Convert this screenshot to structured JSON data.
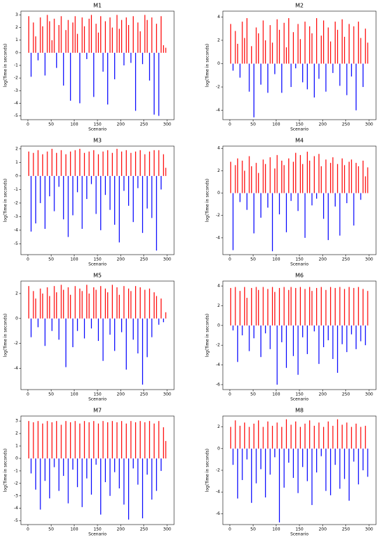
{
  "chart_data": [
    {
      "type": "bar",
      "title": "M1",
      "xlabel": "Scenario",
      "ylabel": "log(Time in seconds)",
      "color_positive": "#ff0000",
      "color_negative": "#0000ff",
      "xlim": [
        -15,
        315
      ],
      "xticks": [
        0,
        50,
        100,
        150,
        200,
        250,
        300
      ],
      "ylim": [
        -5.3,
        3.3
      ],
      "yticks": [
        -5,
        -4,
        -3,
        -2,
        -1,
        0,
        1,
        2,
        3
      ],
      "x": [
        2,
        7,
        12,
        17,
        22,
        27,
        32,
        37,
        42,
        47,
        52,
        57,
        62,
        67,
        72,
        77,
        82,
        87,
        92,
        97,
        102,
        107,
        112,
        117,
        122,
        127,
        132,
        137,
        142,
        147,
        152,
        157,
        162,
        167,
        172,
        177,
        182,
        187,
        192,
        197,
        202,
        207,
        212,
        217,
        222,
        227,
        232,
        237,
        242,
        247,
        252,
        257,
        262,
        267,
        272,
        277,
        282,
        287,
        292,
        297
      ],
      "values": [
        2.9,
        -1.9,
        2.4,
        1.3,
        -0.6,
        2.8,
        2.1,
        -1.8,
        3.0,
        2.5,
        1.0,
        2.7,
        -1.2,
        2.2,
        2.9,
        -2.6,
        1.8,
        2.6,
        -3.8,
        2.4,
        2.9,
        1.5,
        -4.0,
        2.8,
        2.1,
        -0.5,
        2.7,
        3.0,
        -3.5,
        2.3,
        1.6,
        2.9,
        -1.5,
        2.5,
        -4.1,
        2.8,
        2.0,
        -2.1,
        3.0,
        1.9,
        2.6,
        -1.0,
        2.8,
        2.2,
        -0.8,
        2.9,
        -4.6,
        2.4,
        1.7,
        -0.9,
        3.0,
        2.6,
        -2.2,
        2.8,
        -4.9,
        2.3,
        -5.0,
        2.9,
        0.6,
        0.4
      ]
    },
    {
      "type": "bar",
      "title": "M2",
      "xlabel": "Scenario",
      "ylabel": "log(Time in seconds)",
      "color_positive": "#ff0000",
      "color_negative": "#0000ff",
      "xlim": [
        -15,
        315
      ],
      "xticks": [
        0,
        50,
        100,
        150,
        200,
        250,
        300
      ],
      "ylim": [
        -4.8,
        4.5
      ],
      "yticks": [
        -4,
        -2,
        0,
        2,
        4
      ],
      "x": [
        2,
        7,
        12,
        17,
        22,
        27,
        32,
        37,
        42,
        47,
        52,
        57,
        62,
        67,
        72,
        77,
        82,
        87,
        92,
        97,
        102,
        107,
        112,
        117,
        122,
        127,
        132,
        137,
        142,
        147,
        152,
        157,
        162,
        167,
        172,
        177,
        182,
        187,
        192,
        197,
        202,
        207,
        212,
        217,
        222,
        227,
        232,
        237,
        242,
        247,
        252,
        257,
        262,
        267,
        272,
        277,
        282,
        287,
        292,
        297
      ],
      "values": [
        3.4,
        -0.6,
        2.8,
        1.7,
        -1.2,
        3.6,
        2.2,
        3.9,
        -2.4,
        1.5,
        -4.6,
        3.1,
        2.6,
        -1.8,
        3.7,
        2.0,
        -2.5,
        3.3,
        1.8,
        -0.9,
        3.8,
        2.9,
        -2.5,
        3.5,
        1.4,
        3.9,
        -2.0,
        2.7,
        -0.4,
        3.4,
        2.1,
        -1.6,
        3.6,
        -2.2,
        3.2,
        2.6,
        -2.9,
        3.9,
        -1.3,
        2.4,
        3.7,
        -2.4,
        3.1,
        1.9,
        -0.8,
        3.6,
        2.9,
        -1.9,
        3.8,
        2.3,
        -2.7,
        3.4,
        -1.1,
        3.2,
        -4.0,
        3.6,
        2.2,
        -2.0,
        3.0,
        1.8
      ]
    },
    {
      "type": "bar",
      "title": "M3",
      "xlabel": "Scenario",
      "ylabel": "log(Time in seconds)",
      "color_positive": "#ff0000",
      "color_negative": "#0000ff",
      "xlim": [
        -15,
        315
      ],
      "xticks": [
        0,
        50,
        100,
        150,
        200,
        250,
        300
      ],
      "ylim": [
        -5.8,
        2.2
      ],
      "yticks": [
        -5,
        -4,
        -3,
        -2,
        -1,
        0,
        1,
        2
      ],
      "x": [
        2,
        7,
        12,
        17,
        22,
        27,
        32,
        37,
        42,
        47,
        52,
        57,
        62,
        67,
        72,
        77,
        82,
        87,
        92,
        97,
        102,
        107,
        112,
        117,
        122,
        127,
        132,
        137,
        142,
        147,
        152,
        157,
        162,
        167,
        172,
        177,
        182,
        187,
        192,
        197,
        202,
        207,
        212,
        217,
        222,
        227,
        232,
        237,
        242,
        247,
        252,
        257,
        262,
        267,
        272,
        277,
        282,
        287,
        292,
        297
      ],
      "values": [
        1.8,
        -4.1,
        1.7,
        -3.5,
        1.9,
        -2.0,
        1.6,
        -3.9,
        1.8,
        -1.5,
        2.0,
        -2.6,
        1.7,
        -0.8,
        1.9,
        -3.2,
        1.6,
        -4.5,
        1.8,
        -2.9,
        1.9,
        -1.2,
        2.0,
        -3.9,
        1.7,
        -1.7,
        1.8,
        -0.6,
        1.9,
        -2.8,
        1.6,
        -4.0,
        1.8,
        -1.4,
        1.9,
        -2.5,
        1.7,
        -3.6,
        2.0,
        -4.9,
        1.8,
        -1.1,
        1.9,
        -2.2,
        1.7,
        -3.4,
        1.8,
        -0.9,
        1.9,
        -4.2,
        1.6,
        -2.4,
        1.8,
        -3.1,
        1.9,
        -5.5,
        1.9,
        -1.0,
        1.6,
        0.6
      ]
    },
    {
      "type": "bar",
      "title": "M4",
      "xlabel": "Scenario",
      "ylabel": "log(Time in seconds)",
      "color_positive": "#ff0000",
      "color_negative": "#0000ff",
      "xlim": [
        -15,
        315
      ],
      "xticks": [
        0,
        50,
        100,
        150,
        200,
        250,
        300
      ],
      "ylim": [
        -5.5,
        4.2
      ],
      "yticks": [
        -4,
        -2,
        0,
        2,
        4
      ],
      "x": [
        2,
        7,
        12,
        17,
        22,
        27,
        32,
        37,
        42,
        47,
        52,
        57,
        62,
        67,
        72,
        77,
        82,
        87,
        92,
        97,
        102,
        107,
        112,
        117,
        122,
        127,
        132,
        137,
        142,
        147,
        152,
        157,
        162,
        167,
        172,
        177,
        182,
        187,
        192,
        197,
        202,
        207,
        212,
        217,
        222,
        227,
        232,
        237,
        242,
        247,
        252,
        257,
        262,
        267,
        272,
        277,
        282,
        287,
        292,
        297
      ],
      "values": [
        2.8,
        -5.1,
        2.5,
        3.1,
        -0.8,
        2.9,
        2.0,
        -1.5,
        3.3,
        2.4,
        -3.6,
        2.7,
        1.8,
        -2.2,
        3.0,
        2.6,
        -1.3,
        3.2,
        -5.2,
        2.2,
        3.4,
        -1.9,
        2.9,
        2.5,
        -3.5,
        3.1,
        -0.7,
        2.8,
        3.6,
        -1.6,
        3.4,
        2.6,
        -4.0,
        3.7,
        2.9,
        -1.1,
        3.3,
        -0.5,
        3.5,
        2.4,
        -2.3,
        3.0,
        -4.2,
        2.7,
        3.2,
        -1.2,
        2.6,
        -3.8,
        3.1,
        2.5,
        -0.9,
        2.8,
        3.0,
        -2.9,
        2.7,
        2.4,
        -0.6,
        2.9,
        1.5,
        2.3
      ]
    },
    {
      "type": "bar",
      "title": "M5",
      "xlabel": "Scenario",
      "ylabel": "log(Time in seconds)",
      "color_positive": "#ff0000",
      "color_negative": "#0000ff",
      "xlim": [
        -15,
        315
      ],
      "xticks": [
        0,
        50,
        100,
        150,
        200,
        250,
        300
      ],
      "ylim": [
        -5.7,
        3.0
      ],
      "yticks": [
        -4,
        -2,
        0,
        2
      ],
      "x": [
        2,
        7,
        12,
        17,
        22,
        27,
        32,
        37,
        42,
        47,
        52,
        57,
        62,
        67,
        72,
        77,
        82,
        87,
        92,
        97,
        102,
        107,
        112,
        117,
        122,
        127,
        132,
        137,
        142,
        147,
        152,
        157,
        162,
        167,
        172,
        177,
        182,
        187,
        192,
        197,
        202,
        207,
        212,
        217,
        222,
        227,
        232,
        237,
        242,
        247,
        252,
        257,
        262,
        267,
        272,
        277,
        282,
        287,
        292,
        297
      ],
      "values": [
        2.6,
        -1.5,
        2.2,
        1.6,
        -0.7,
        2.4,
        2.0,
        -2.2,
        2.5,
        1.8,
        -1.0,
        2.6,
        2.1,
        -1.7,
        2.7,
        2.3,
        -3.9,
        2.5,
        1.9,
        -2.3,
        2.6,
        -1.0,
        2.4,
        2.2,
        -1.6,
        2.7,
        2.0,
        -0.8,
        2.5,
        2.3,
        -1.8,
        2.6,
        -3.4,
        2.4,
        2.1,
        -1.3,
        2.7,
        -2.6,
        2.5,
        1.9,
        -1.1,
        2.6,
        -4.1,
        2.4,
        2.2,
        -1.7,
        2.6,
        -2.8,
        2.5,
        -5.3,
        2.3,
        -3.1,
        2.4,
        -1.5,
        2.1,
        1.8,
        -0.5,
        1.6,
        -0.3,
        0.5
      ]
    },
    {
      "type": "bar",
      "title": "M6",
      "xlabel": "Scenario",
      "ylabel": "log(Time in seconds)",
      "color_positive": "#ff0000",
      "color_negative": "#0000ff",
      "xlim": [
        -15,
        315
      ],
      "xticks": [
        0,
        50,
        100,
        150,
        200,
        250,
        300
      ],
      "ylim": [
        -6.5,
        4.5
      ],
      "yticks": [
        -6,
        -4,
        -2,
        0,
        2,
        4
      ],
      "x": [
        2,
        7,
        12,
        17,
        22,
        27,
        32,
        37,
        42,
        47,
        52,
        57,
        62,
        67,
        72,
        77,
        82,
        87,
        92,
        97,
        102,
        107,
        112,
        117,
        122,
        127,
        132,
        137,
        142,
        147,
        152,
        157,
        162,
        167,
        172,
        177,
        182,
        187,
        192,
        197,
        202,
        207,
        212,
        217,
        222,
        227,
        232,
        237,
        242,
        247,
        252,
        257,
        262,
        267,
        272,
        277,
        282,
        287,
        292,
        297
      ],
      "values": [
        3.8,
        -0.5,
        3.9,
        -3.7,
        3.5,
        -1.0,
        3.9,
        2.8,
        -2.6,
        3.8,
        -1.3,
        3.9,
        3.6,
        -3.2,
        3.9,
        -0.8,
        3.7,
        -2.4,
        3.9,
        3.4,
        -6.0,
        3.8,
        -1.7,
        3.9,
        -4.3,
        3.6,
        3.9,
        -3.1,
        3.8,
        -5.0,
        3.9,
        -1.2,
        3.7,
        -2.9,
        3.9,
        3.5,
        -0.6,
        3.8,
        -3.9,
        3.9,
        -2.2,
        3.6,
        -1.5,
        3.9,
        -3.4,
        3.8,
        -4.8,
        3.9,
        -1.9,
        3.7,
        -2.7,
        3.9,
        -0.9,
        3.8,
        -2.4,
        3.9,
        -1.6,
        3.7,
        -2.0,
        3.5
      ]
    },
    {
      "type": "bar",
      "title": "M7",
      "xlabel": "Scenario",
      "ylabel": "log(Time in seconds)",
      "color_positive": "#ff0000",
      "color_negative": "#0000ff",
      "xlim": [
        -15,
        315
      ],
      "xticks": [
        0,
        50,
        100,
        150,
        200,
        250,
        300
      ],
      "ylim": [
        -5.3,
        3.4
      ],
      "yticks": [
        -5,
        -4,
        -3,
        -2,
        -1,
        0,
        1,
        2,
        3
      ],
      "x": [
        2,
        7,
        12,
        17,
        22,
        27,
        32,
        37,
        42,
        47,
        52,
        57,
        62,
        67,
        72,
        77,
        82,
        87,
        92,
        97,
        102,
        107,
        112,
        117,
        122,
        127,
        132,
        137,
        142,
        147,
        152,
        157,
        162,
        167,
        172,
        177,
        182,
        187,
        192,
        197,
        202,
        207,
        212,
        217,
        222,
        227,
        232,
        237,
        242,
        247,
        252,
        257,
        262,
        267,
        272,
        277,
        282,
        287,
        292,
        297
      ],
      "values": [
        3.0,
        -1.2,
        2.9,
        -2.5,
        3.0,
        -4.1,
        2.8,
        -1.8,
        3.0,
        -3.2,
        2.9,
        -0.7,
        3.0,
        -2.6,
        2.7,
        -1.4,
        3.0,
        -3.6,
        2.9,
        -0.9,
        3.0,
        -2.3,
        2.8,
        -3.9,
        3.0,
        -1.6,
        2.9,
        -2.9,
        3.0,
        -0.5,
        2.8,
        -4.5,
        3.0,
        -1.9,
        2.9,
        -3.0,
        3.0,
        -1.1,
        2.9,
        -2.4,
        3.0,
        -3.7,
        2.8,
        -4.9,
        3.0,
        -0.8,
        2.9,
        -2.1,
        3.0,
        -4.8,
        2.9,
        -1.3,
        3.0,
        -3.3,
        2.8,
        -2.6,
        3.0,
        -1.0,
        2.5,
        1.4
      ]
    },
    {
      "type": "bar",
      "title": "M8",
      "xlabel": "Scenario",
      "ylabel": "log(Time in seconds)",
      "color_positive": "#ff0000",
      "color_negative": "#0000ff",
      "xlim": [
        -15,
        315
      ],
      "xticks": [
        0,
        50,
        100,
        150,
        200,
        250,
        300
      ],
      "ylim": [
        -7,
        3.0
      ],
      "yticks": [
        -6,
        -4,
        -2,
        0,
        2
      ],
      "x": [
        2,
        7,
        12,
        17,
        22,
        27,
        32,
        37,
        42,
        47,
        52,
        57,
        62,
        67,
        72,
        77,
        82,
        87,
        92,
        97,
        102,
        107,
        112,
        117,
        122,
        127,
        132,
        137,
        142,
        147,
        152,
        157,
        162,
        167,
        172,
        177,
        182,
        187,
        192,
        197,
        202,
        207,
        212,
        217,
        222,
        227,
        232,
        237,
        242,
        247,
        252,
        257,
        262,
        267,
        272,
        277,
        282,
        287,
        292,
        297
      ],
      "values": [
        2.0,
        -1.5,
        2.6,
        -4.6,
        2.1,
        -2.9,
        2.4,
        -1.0,
        2.0,
        -5.0,
        2.3,
        -3.2,
        2.6,
        -1.9,
        2.0,
        -4.5,
        2.5,
        -2.4,
        2.1,
        -0.8,
        2.4,
        -6.8,
        2.0,
        -3.6,
        2.7,
        -1.3,
        2.2,
        -2.7,
        2.5,
        -4.1,
        2.0,
        -1.7,
        2.3,
        -3.0,
        2.6,
        -5.2,
        2.1,
        -2.2,
        2.4,
        -0.7,
        2.0,
        -3.9,
        2.5,
        -4.3,
        2.1,
        -1.5,
        2.7,
        -3.7,
        2.2,
        -2.8,
        2.4,
        -4.8,
        2.0,
        -1.2,
        2.3,
        -3.3,
        2.0,
        -2.0,
        2.1,
        -2.6
      ]
    }
  ]
}
